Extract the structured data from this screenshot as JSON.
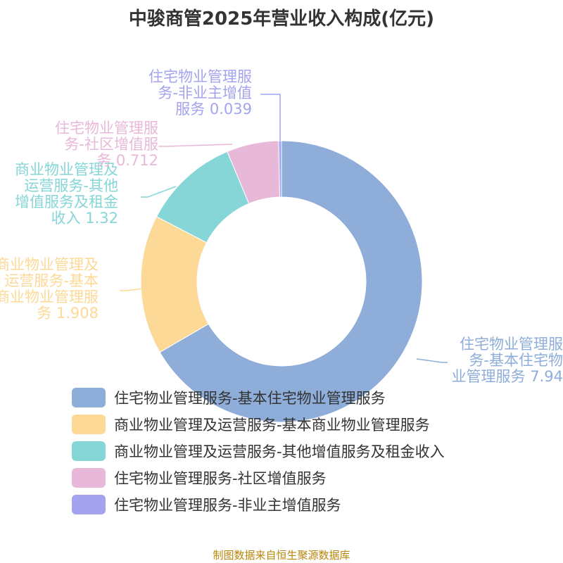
{
  "title": "中骏商管2025年营业收入构成(亿元)",
  "source": "制图数据来自恒生聚源数据库",
  "chart_data": {
    "type": "pie",
    "donut": true,
    "legend_position": "bottom",
    "series": [
      {
        "name": "住宅物业管理服务-基本住宅物业管理服务",
        "value": 7.94,
        "value_label": "7.94",
        "label_lines": [
          "住宅物业管理服",
          "务-基本住宅物",
          "业管理服务 7.94"
        ],
        "color": "#8eadd9"
      },
      {
        "name": "商业物业管理及运营服务-基本商业物业管理服务",
        "value": 1.908,
        "value_label": "1.908",
        "label_lines": [
          "商业物业管理及",
          "运营服务-基本",
          "商业物业管理服",
          "务 1.908"
        ],
        "color": "#fdd997"
      },
      {
        "name": "商业物业管理及运营服务-其他增值服务及租金收入",
        "value": 1.32,
        "value_label": "1.32",
        "label_lines": [
          "商业物业管理及",
          "运营服务-其他",
          "增值服务及租金",
          "收入 1.32"
        ],
        "color": "#86d6d8"
      },
      {
        "name": "住宅物业管理服务-社区增值服务",
        "value": 0.712,
        "value_label": "0.712",
        "label_lines": [
          "住宅物业管理服",
          "务-社区增值服",
          "务 0.712"
        ],
        "color": "#e8b8d8"
      },
      {
        "name": "住宅物业管理服务-非业主增值服务",
        "value": 0.039,
        "value_label": "0.039",
        "label_lines": [
          "住宅物业管理服",
          "务-非业主增值",
          "服务 0.039"
        ],
        "color": "#a3a3f0"
      }
    ]
  }
}
